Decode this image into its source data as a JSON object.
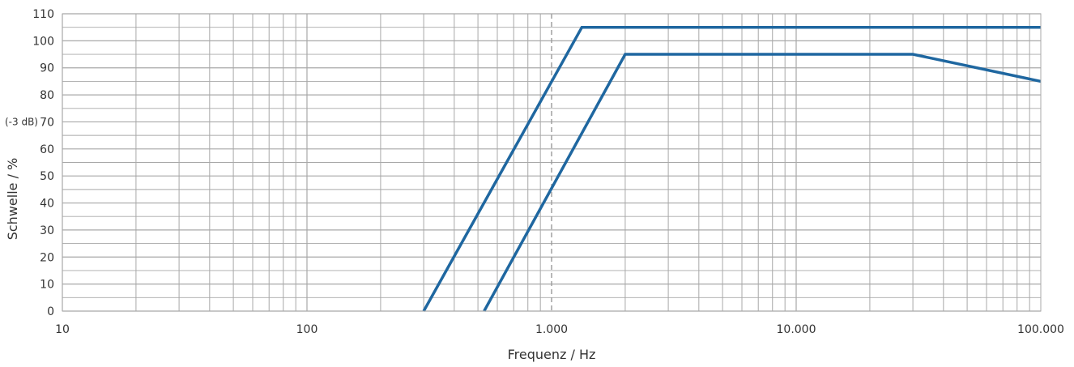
{
  "chart_data": {
    "type": "line",
    "x_scale": "log",
    "xlim": [
      10,
      100000
    ],
    "ylim": [
      0,
      110
    ],
    "xlabel": "Frequenz / Hz",
    "ylabel": "Schwelle / %",
    "y_annotation": "(-3 dB)",
    "x_tick_labels": [
      {
        "value": 10,
        "label": "10"
      },
      {
        "value": 100,
        "label": "100"
      },
      {
        "value": 1000,
        "label": "1.000"
      },
      {
        "value": 10000,
        "label": "10.000"
      },
      {
        "value": 100000,
        "label": "100.000"
      }
    ],
    "y_ticks": [
      0,
      10,
      20,
      30,
      40,
      50,
      60,
      70,
      80,
      90,
      100,
      110
    ],
    "reference_line_x": 1000,
    "grid": true,
    "series": [
      {
        "values": [
          [
            300,
            0
          ],
          [
            1330,
            105
          ],
          [
            100000,
            105
          ]
        ]
      },
      {
        "values": [
          [
            530,
            0
          ],
          [
            2000,
            95
          ],
          [
            30000,
            95
          ],
          [
            100000,
            85
          ]
        ]
      }
    ],
    "colors": {
      "series": "#1f67a0",
      "grid": "#a8a8a8",
      "ref": "#9a9a9a"
    }
  }
}
